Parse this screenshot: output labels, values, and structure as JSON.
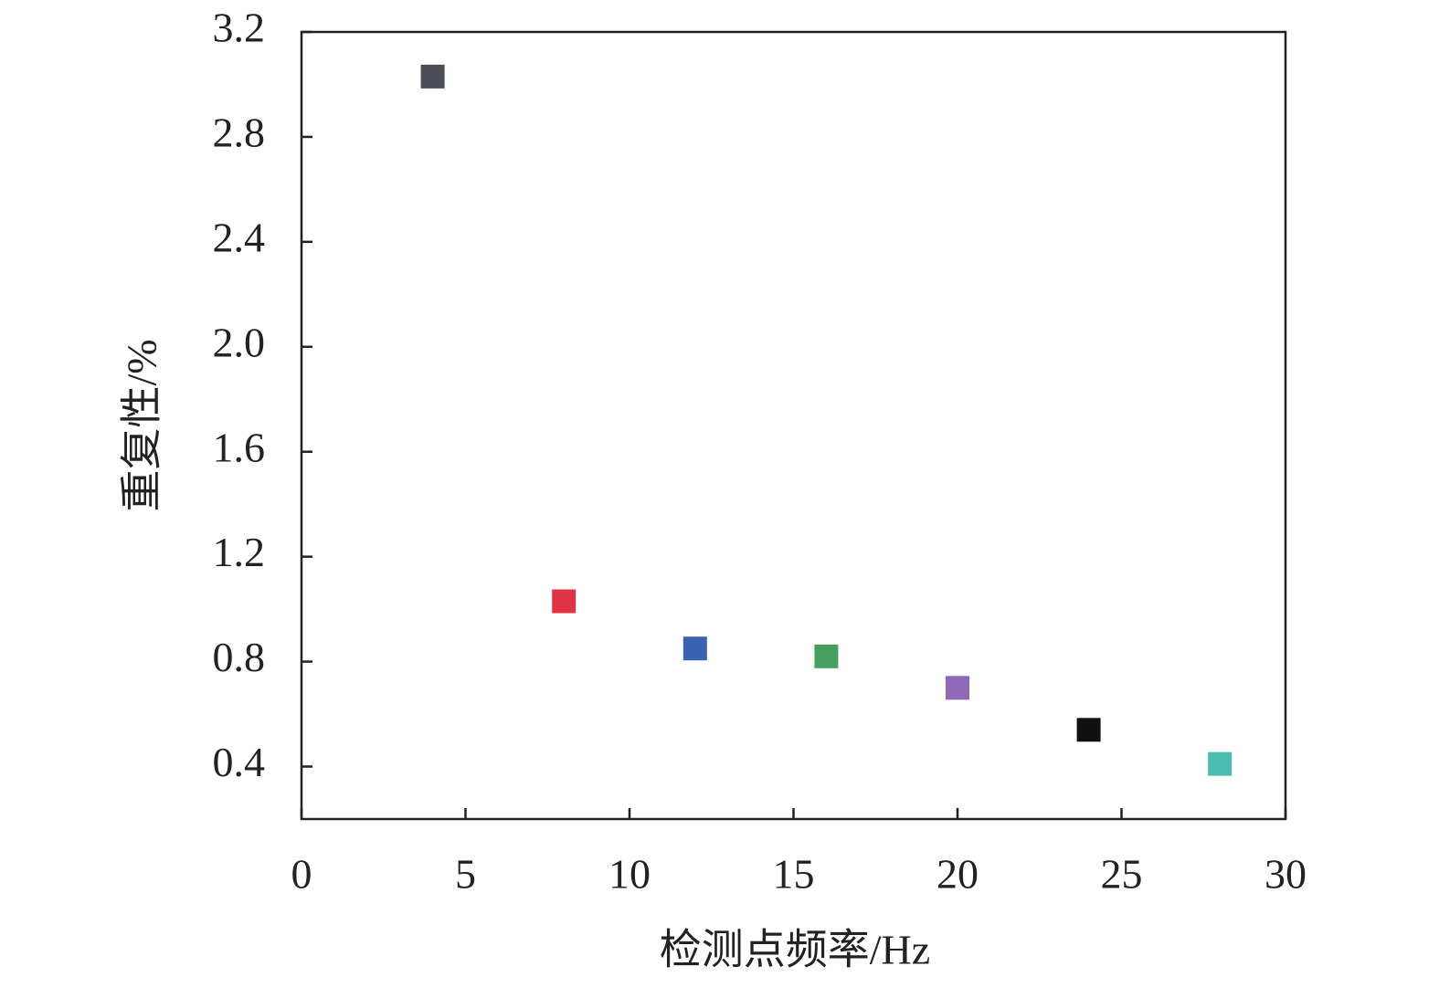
{
  "chart_data": {
    "type": "scatter",
    "x_label": "检测点频率/Hz",
    "y_label": "重复性/%",
    "x": [
      4,
      8,
      12,
      16,
      20,
      24,
      28
    ],
    "values": [
      3.03,
      1.03,
      0.85,
      0.82,
      0.7,
      0.54,
      0.41
    ],
    "colors": [
      "#4a4d55",
      "#e03444",
      "#3a62b0",
      "#45a060",
      "#9167b8",
      "#111111",
      "#4bbcb0"
    ],
    "xlim": [
      0,
      30
    ],
    "xticks": [
      0,
      5,
      10,
      15,
      20,
      25,
      30
    ],
    "ylim": [
      0.2,
      3.2
    ],
    "yticks": [
      0.4,
      0.8,
      1.2,
      1.6,
      {
        "value": 2,
        "label": "2.0"
      },
      2.4,
      2.8,
      3.2
    ],
    "grid": false
  }
}
